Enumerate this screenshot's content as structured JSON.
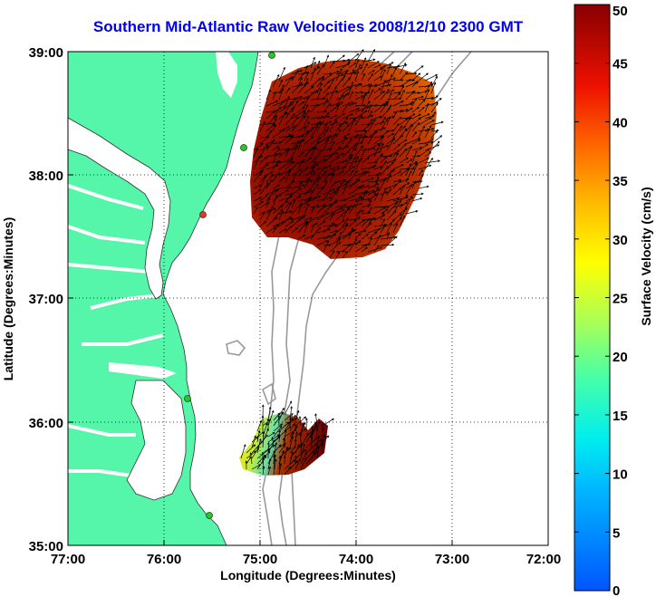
{
  "title": "Southern Mid-Atlantic Raw Velocities 2008/12/10 2300 GMT",
  "axes": {
    "x_label": "Longitude (Degrees:Minutes)",
    "y_label": "Latitude (Degrees:Minutes)",
    "x_ticks": [
      "77:00",
      "76:00",
      "75:00",
      "74:00",
      "73:00",
      "72:00"
    ],
    "y_ticks": [
      "39:00",
      "38:00",
      "37:00",
      "36:00",
      "35:00"
    ]
  },
  "colorbar": {
    "label": "Surface Velocity (cm/s)",
    "ticks": [
      "50",
      "45",
      "40",
      "35",
      "30",
      "25",
      "20",
      "15",
      "10",
      "5",
      "0"
    ],
    "min": 0,
    "max": 50
  },
  "colors": {
    "land": "#55f5aa",
    "water": "#ffffff",
    "title": "#0000ee",
    "station": "#22cc22",
    "station_alt": "#ee3322",
    "bathymetry": "#999999"
  }
}
